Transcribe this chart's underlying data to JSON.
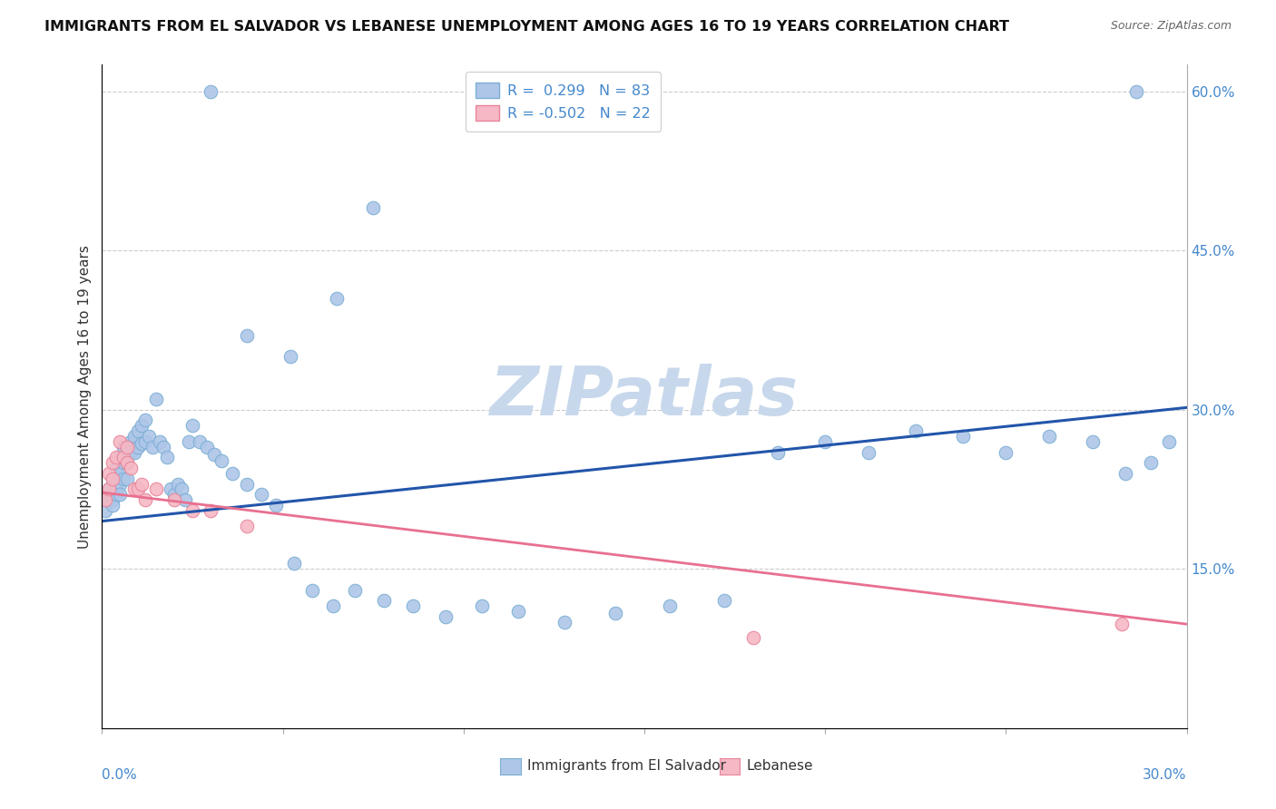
{
  "title": "IMMIGRANTS FROM EL SALVADOR VS LEBANESE UNEMPLOYMENT AMONG AGES 16 TO 19 YEARS CORRELATION CHART",
  "source": "Source: ZipAtlas.com",
  "ylabel": "Unemployment Among Ages 16 to 19 years",
  "xmin": 0.0,
  "xmax": 0.3,
  "ymin": 0.0,
  "ymax": 0.625,
  "R_blue": "0.299",
  "N_blue": "83",
  "R_pink": "-0.502",
  "N_pink": "22",
  "blue_marker_face": "#aec6e8",
  "blue_marker_edge": "#7bafd4",
  "pink_marker_face": "#f5b8c4",
  "pink_marker_edge": "#e8849a",
  "line_blue": "#2255aa",
  "line_pink": "#e87090",
  "watermark": "ZIPatlas",
  "watermark_color": "#c8d8ec",
  "legend_label_blue": "Immigrants from El Salvador",
  "legend_label_pink": "Lebanese",
  "blue_line_y0": 0.195,
  "blue_line_y1": 0.302,
  "pink_line_y0": 0.222,
  "pink_line_y1": 0.098,
  "grid_color": "#cccccc",
  "right_tick_color": "#4488cc",
  "xlabel_color": "#4488cc",
  "blue_x": [
    0.001,
    0.001,
    0.002,
    0.002,
    0.003,
    0.003,
    0.003,
    0.003,
    0.004,
    0.004,
    0.004,
    0.004,
    0.005,
    0.005,
    0.005,
    0.005,
    0.006,
    0.006,
    0.006,
    0.007,
    0.007,
    0.007,
    0.008,
    0.008,
    0.009,
    0.009,
    0.01,
    0.01,
    0.011,
    0.011,
    0.012,
    0.012,
    0.013,
    0.014,
    0.015,
    0.016,
    0.017,
    0.018,
    0.019,
    0.02,
    0.021,
    0.022,
    0.023,
    0.024,
    0.025,
    0.027,
    0.029,
    0.031,
    0.033,
    0.036,
    0.04,
    0.044,
    0.048,
    0.053,
    0.058,
    0.064,
    0.07,
    0.078,
    0.086,
    0.095,
    0.105,
    0.115,
    0.128,
    0.142,
    0.157,
    0.172,
    0.187,
    0.2,
    0.212,
    0.225,
    0.238,
    0.25,
    0.262,
    0.274,
    0.283,
    0.29,
    0.295,
    0.065,
    0.052,
    0.04,
    0.075,
    0.03,
    0.286
  ],
  "blue_y": [
    0.215,
    0.205,
    0.225,
    0.215,
    0.235,
    0.22,
    0.215,
    0.21,
    0.245,
    0.235,
    0.225,
    0.22,
    0.255,
    0.24,
    0.23,
    0.22,
    0.265,
    0.25,
    0.235,
    0.265,
    0.25,
    0.235,
    0.27,
    0.26,
    0.275,
    0.26,
    0.28,
    0.265,
    0.285,
    0.268,
    0.29,
    0.27,
    0.275,
    0.265,
    0.31,
    0.27,
    0.265,
    0.255,
    0.225,
    0.22,
    0.23,
    0.225,
    0.215,
    0.27,
    0.285,
    0.27,
    0.265,
    0.258,
    0.252,
    0.24,
    0.23,
    0.22,
    0.21,
    0.155,
    0.13,
    0.115,
    0.13,
    0.12,
    0.115,
    0.105,
    0.115,
    0.11,
    0.1,
    0.108,
    0.115,
    0.12,
    0.26,
    0.27,
    0.26,
    0.28,
    0.275,
    0.26,
    0.275,
    0.27,
    0.24,
    0.25,
    0.27,
    0.405,
    0.35,
    0.37,
    0.49,
    0.6,
    0.6
  ],
  "pink_x": [
    0.001,
    0.002,
    0.002,
    0.003,
    0.003,
    0.004,
    0.005,
    0.006,
    0.007,
    0.007,
    0.008,
    0.009,
    0.01,
    0.011,
    0.012,
    0.015,
    0.02,
    0.025,
    0.03,
    0.04,
    0.18,
    0.282
  ],
  "pink_y": [
    0.215,
    0.24,
    0.225,
    0.25,
    0.235,
    0.255,
    0.27,
    0.255,
    0.265,
    0.25,
    0.245,
    0.225,
    0.225,
    0.23,
    0.215,
    0.225,
    0.215,
    0.205,
    0.205,
    0.19,
    0.085,
    0.098
  ]
}
